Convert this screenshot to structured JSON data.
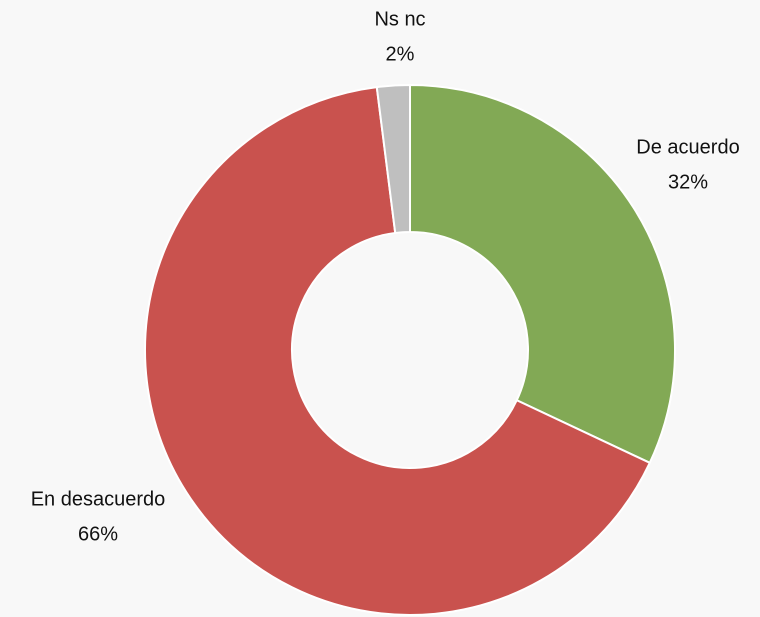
{
  "chart_data": {
    "type": "donut",
    "categories": [
      "De acuerdo",
      "En desacuerdo",
      "Ns nc"
    ],
    "values": [
      32,
      66,
      2
    ],
    "value_labels": [
      "32%",
      "66%",
      "2%"
    ],
    "colors": [
      "#82a955",
      "#c9524e",
      "#bfbfbf"
    ]
  }
}
